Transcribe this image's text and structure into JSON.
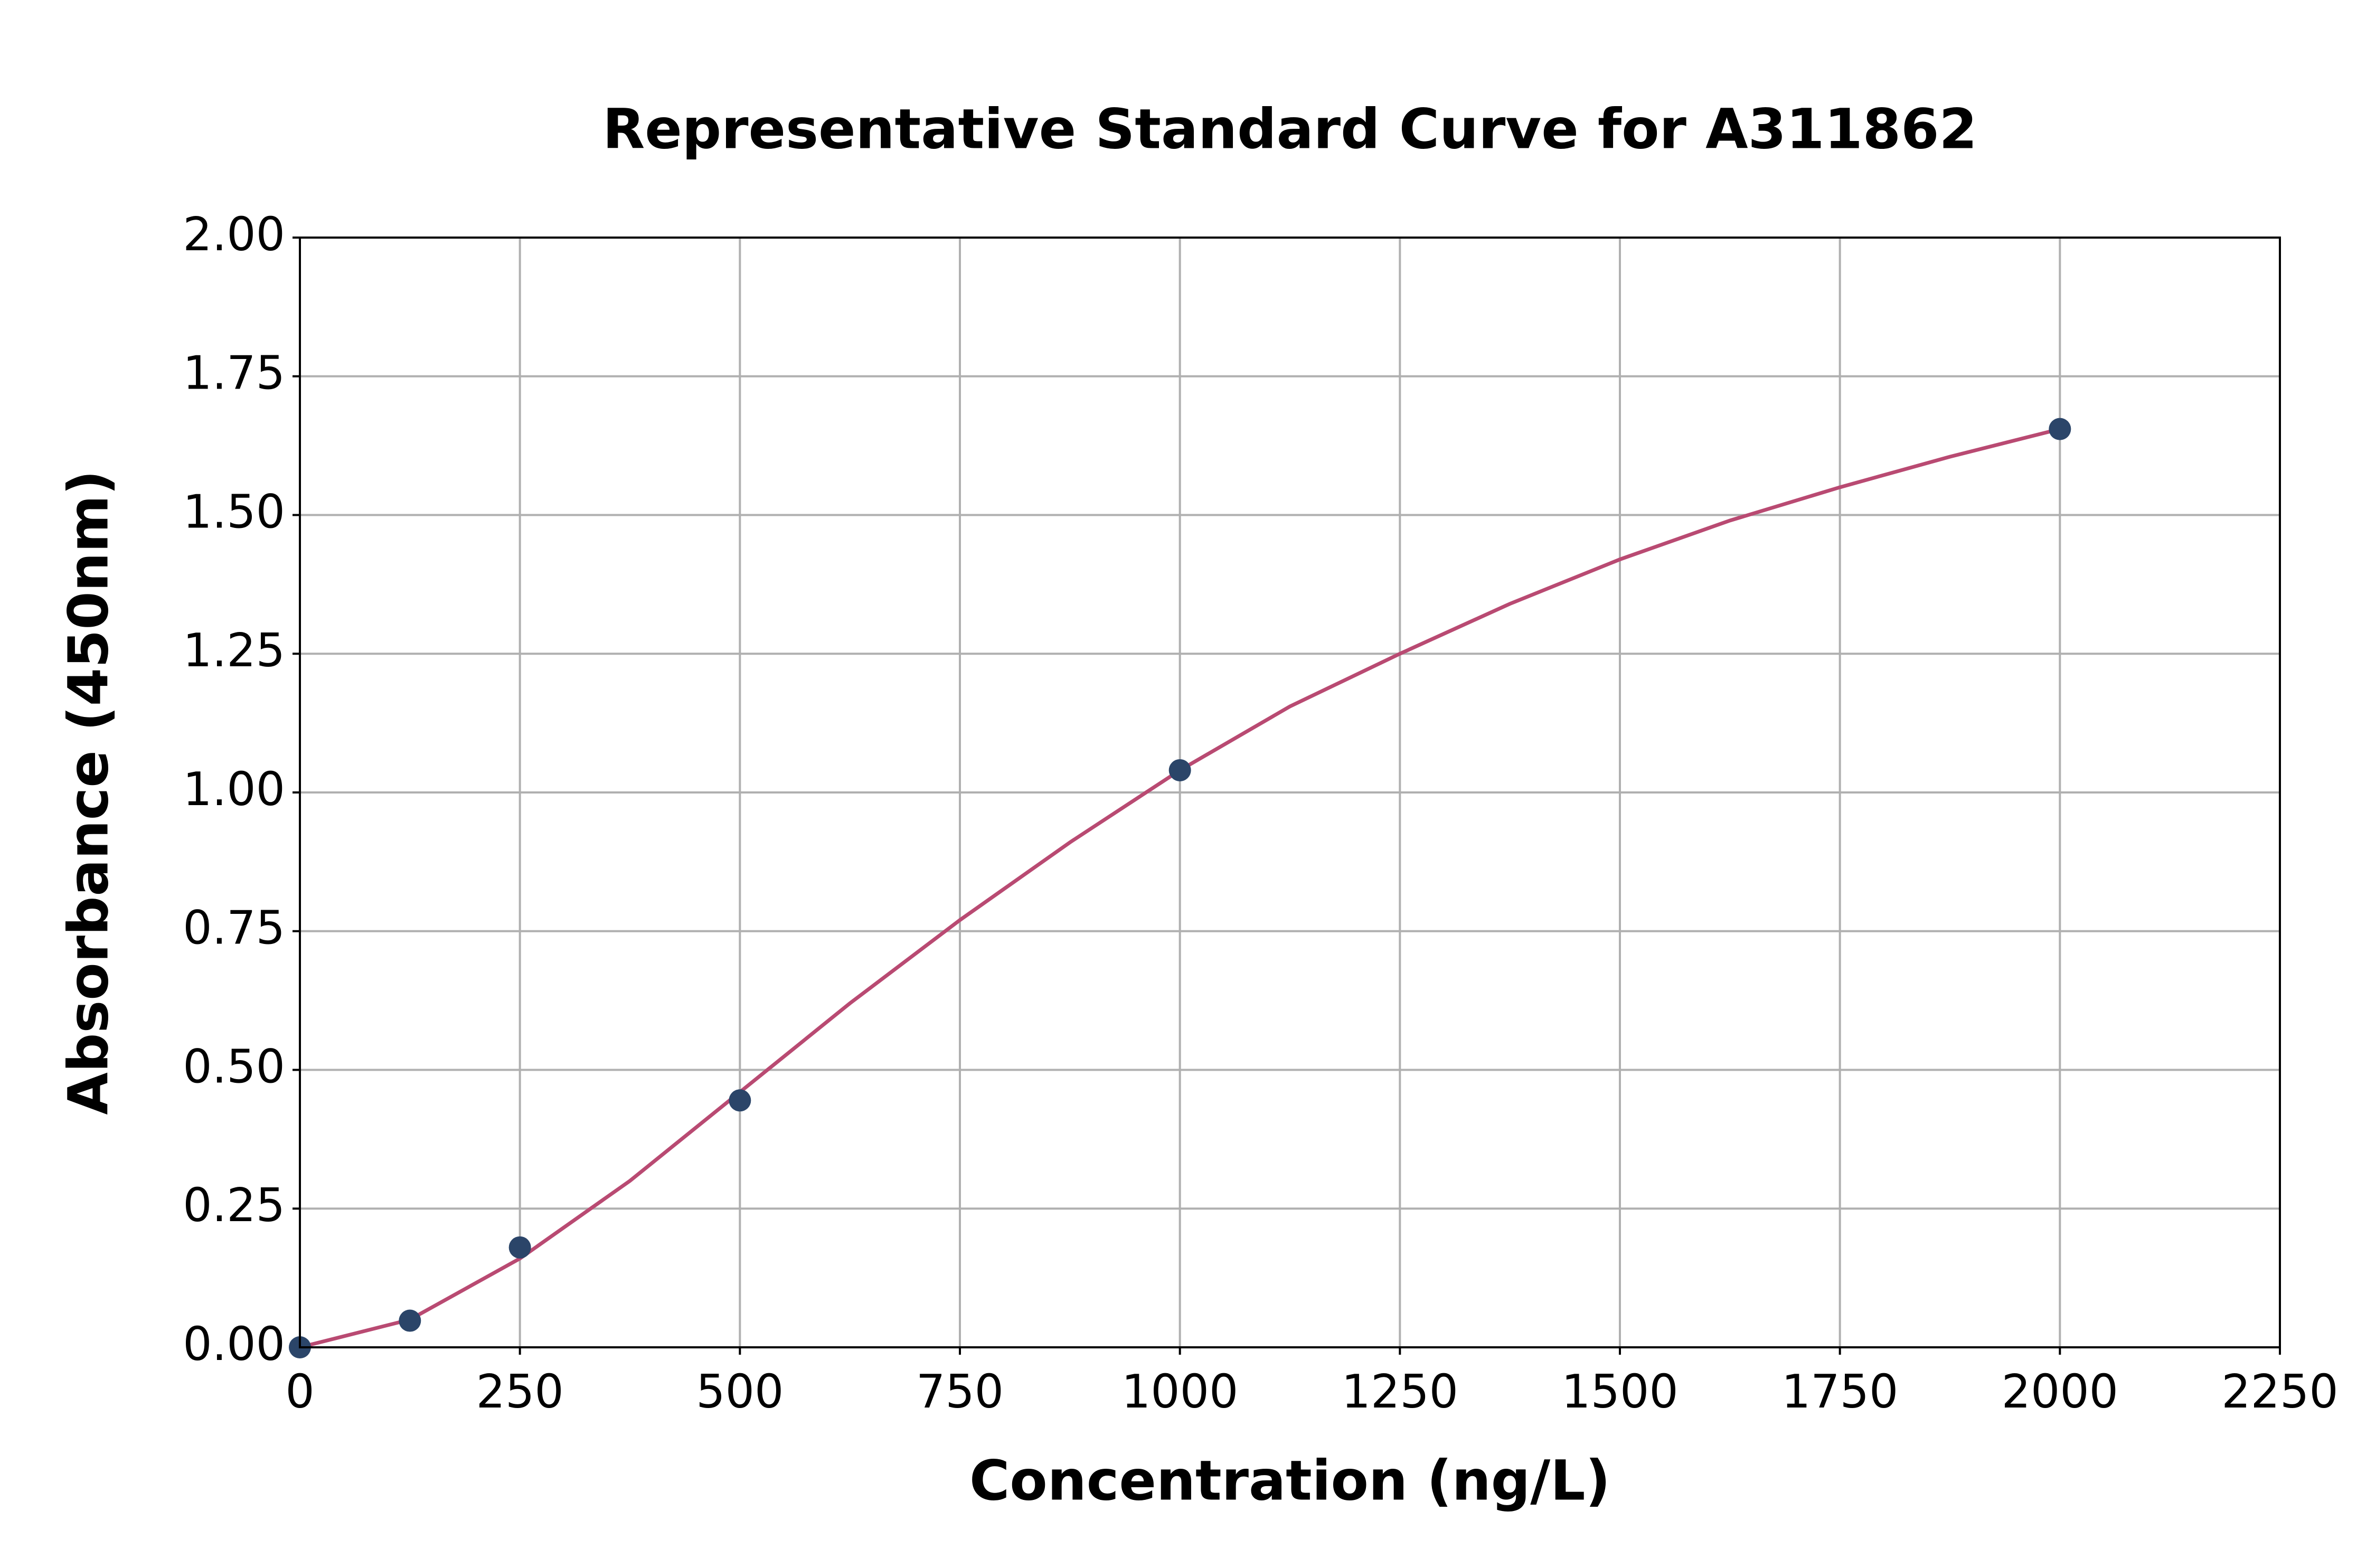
{
  "chart_data": {
    "type": "scatter",
    "title": "Representative Standard Curve for A311862",
    "x_label": "Concentration (ng/L)",
    "y_label": "Absorbance (450nm)",
    "grid": true,
    "xlim": [
      0,
      2250
    ],
    "xticks": [
      0,
      250,
      500,
      750,
      1000,
      1250,
      1500,
      1750,
      2000,
      2250
    ],
    "ylim": [
      0,
      2
    ],
    "yticks": [
      {
        "value": 0,
        "label": "0.00"
      },
      {
        "value": 0.25,
        "label": "0.25"
      },
      {
        "value": 0.5,
        "label": "0.50"
      },
      {
        "value": 0.75,
        "label": "0.75"
      },
      {
        "value": 1,
        "label": "1.00"
      },
      {
        "value": 1.25,
        "label": "1.25"
      },
      {
        "value": 1.5,
        "label": "1.50"
      },
      {
        "value": 1.75,
        "label": "1.75"
      },
      {
        "value": 2,
        "label": "2.00"
      }
    ],
    "series": [
      {
        "type": "scatter",
        "color": "#2b4569",
        "x": [
          0,
          125,
          250,
          500,
          1000,
          2000
        ],
        "values": [
          0.0,
          0.048,
          0.18,
          0.445,
          1.04,
          1.655
        ]
      },
      {
        "type": "line",
        "color": "#b94a72",
        "x": [
          0,
          125,
          250,
          375,
          500,
          625,
          750,
          875,
          1000,
          1125,
          1250,
          1375,
          1500,
          1625,
          1750,
          1875,
          2000
        ],
        "values": [
          0.0,
          0.05,
          0.16,
          0.3,
          0.46,
          0.62,
          0.77,
          0.91,
          1.04,
          1.155,
          1.25,
          1.34,
          1.42,
          1.49,
          1.55,
          1.605,
          1.655
        ]
      }
    ]
  }
}
